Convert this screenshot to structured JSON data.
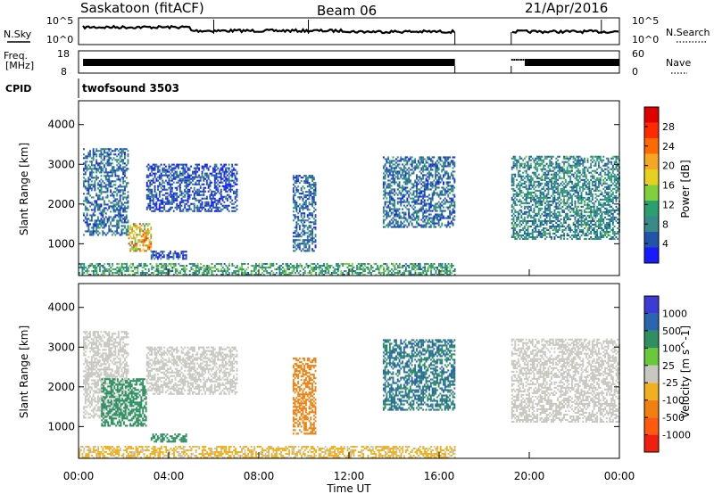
{
  "header": {
    "station": "Saskatoon (fitACF)",
    "beam": "Beam 06",
    "date": "21/Apr/2016"
  },
  "strips": {
    "nsky_label": "N.Sky",
    "nsky_ticks": [
      "10^5",
      "10^0"
    ],
    "nsearch_label": "N.Search",
    "nsearch_ticks": [
      "10^5",
      "10^0"
    ],
    "freq_label_1": "Freq.",
    "freq_label_2": "[MHz]",
    "freq_ticks": [
      "18",
      "8"
    ],
    "nave_label": "Nave",
    "nave_ticks": [
      "60",
      "0"
    ],
    "cpid_label": "CPID",
    "cpid_value": "twofsound 3503"
  },
  "colors": {
    "power_scale": [
      "#1a1aff",
      "#2255aa",
      "#3a8a8a",
      "#2aa070",
      "#7fcf3f",
      "#e8d020",
      "#f5a623",
      "#ff6a00",
      "#ff2a00",
      "#e00000"
    ],
    "velocity_scale": [
      "#3b3bd6",
      "#2a65b0",
      "#2e9060",
      "#6ac93a",
      "#c8c8c0",
      "#f0b020",
      "#f08010",
      "#ff5a10",
      "#f02010"
    ]
  },
  "chart_data": [
    {
      "type": "heatmap",
      "panel": "power",
      "ylabel": "Slant Range [km]",
      "yticks": [
        "1000",
        "2000",
        "3000",
        "4000"
      ],
      "ylim": [
        200,
        4600
      ],
      "xlim": [
        "00:00",
        "24:00"
      ],
      "colorbar_label": "Power [dB]",
      "colorbar_ticks": [
        "4",
        "8",
        "12",
        "16",
        "20",
        "24",
        "28"
      ],
      "regions": [
        {
          "t_start": 0.2,
          "t_end": 2.2,
          "r_low": 1200,
          "r_high": 3400,
          "level": 8
        },
        {
          "t_start": 2.2,
          "t_end": 3.2,
          "r_low": 800,
          "r_high": 1500,
          "level": 20
        },
        {
          "t_start": 3.2,
          "t_end": 4.8,
          "r_low": 600,
          "r_high": 800,
          "level": 6
        },
        {
          "t_start": 3.0,
          "t_end": 7.0,
          "r_low": 1800,
          "r_high": 3000,
          "level": 6
        },
        {
          "t_start": 9.5,
          "t_end": 10.5,
          "r_low": 800,
          "r_high": 2700,
          "level": 8
        },
        {
          "t_start": 13.5,
          "t_end": 16.7,
          "r_low": 1400,
          "r_high": 3200,
          "level": 8
        },
        {
          "t_start": 19.2,
          "t_end": 24.0,
          "r_low": 1100,
          "r_high": 3200,
          "level": 10
        },
        {
          "t_start": 0.0,
          "t_end": 16.7,
          "r_low": 200,
          "r_high": 500,
          "level": 12
        }
      ]
    },
    {
      "type": "heatmap",
      "panel": "velocity",
      "ylabel": "Slant Range [km]",
      "yticks": [
        "1000",
        "2000",
        "3000",
        "4000"
      ],
      "ylim": [
        200,
        4600
      ],
      "xlim": [
        "00:00",
        "24:00"
      ],
      "xlabel": "Time UT",
      "xticks": [
        "00:00",
        "04:00",
        "08:00",
        "12:00",
        "16:00",
        "20:00",
        "00:00"
      ],
      "colorbar_label": "Velocity [m s^-1]",
      "colorbar_ticks": [
        "1000",
        "500",
        "100",
        "25",
        "-25",
        "-100",
        "-500",
        "-1000"
      ],
      "regions": [
        {
          "t_start": 0.2,
          "t_end": 2.2,
          "r_low": 1200,
          "r_high": 3400,
          "level": 0
        },
        {
          "t_start": 1.0,
          "t_end": 3.0,
          "r_low": 1000,
          "r_high": 2200,
          "level": 120
        },
        {
          "t_start": 3.2,
          "t_end": 4.8,
          "r_low": 600,
          "r_high": 800,
          "level": 100
        },
        {
          "t_start": 3.0,
          "t_end": 7.0,
          "r_low": 1800,
          "r_high": 3000,
          "level": 0
        },
        {
          "t_start": 9.5,
          "t_end": 10.5,
          "r_low": 800,
          "r_high": 2700,
          "level": -150
        },
        {
          "t_start": 13.5,
          "t_end": 16.7,
          "r_low": 1400,
          "r_high": 3200,
          "level": 300
        },
        {
          "t_start": 19.2,
          "t_end": 24.0,
          "r_low": 1100,
          "r_high": 3200,
          "level": 0
        },
        {
          "t_start": 0.0,
          "t_end": 16.7,
          "r_low": 200,
          "r_high": 500,
          "level": -30
        }
      ]
    }
  ],
  "data_gap": {
    "t_start": 16.7,
    "t_end": 19.2
  }
}
